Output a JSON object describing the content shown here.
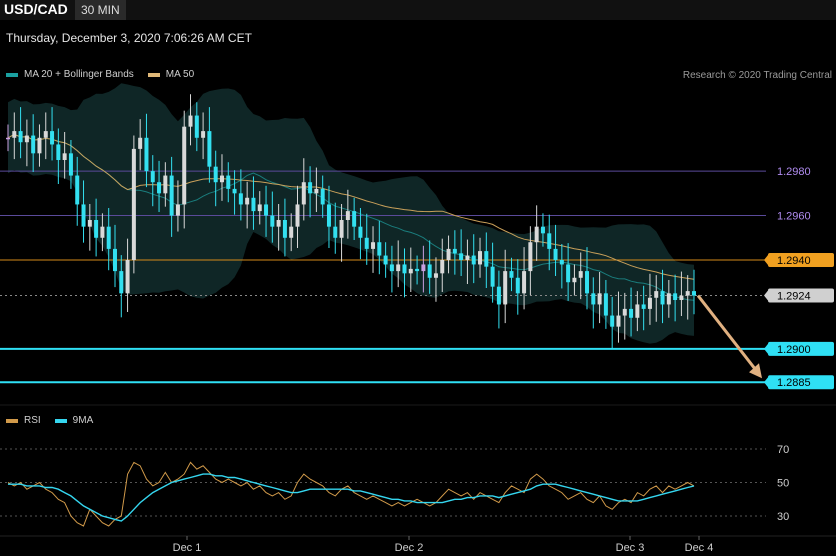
{
  "header": {
    "symbol": "USD/CAD",
    "timeframe": "30 MIN"
  },
  "datetime": "Thursday, December 3, 2020 7:06:26 AM CET",
  "legend_main": [
    {
      "label": "MA 20 + Bollinger Bands",
      "color": "#1aa0a0"
    },
    {
      "label": "MA 50",
      "color": "#e0b878"
    }
  ],
  "credit": "Research © 2020 Trading Central",
  "legend_rsi": [
    {
      "label": "RSI",
      "color": "#d19a4a"
    },
    {
      "label": "9MA",
      "color": "#35d6ef"
    }
  ],
  "colors": {
    "up": "#d9d9d9",
    "down": "#33e0f0",
    "doji_up": "#c9a0e0",
    "band": "#0f2626",
    "ma50": "#c9a05a",
    "ma20": "#1a7d7d"
  },
  "chart_data": [
    {
      "type": "candlestick",
      "ylim": [
        1.2868,
        1.3012
      ],
      "y_ticks": [
        "1.2980",
        "1.2960"
      ],
      "x_ticks": [
        "Dec 1",
        "Dec 2",
        "Dec 3",
        "Dec 4"
      ],
      "close_series": [
        1.2995,
        1.2998,
        1.2993,
        1.2996,
        1.2988,
        1.2995,
        1.2998,
        1.2992,
        1.2985,
        1.2988,
        1.2978,
        1.2965,
        1.2955,
        1.2958,
        1.295,
        1.2955,
        1.2945,
        1.2935,
        1.2925,
        1.294,
        1.299,
        1.2995,
        1.298,
        1.2975,
        1.297,
        1.2978,
        1.296,
        1.2965,
        1.3,
        1.3005,
        1.2995,
        1.2998,
        1.2982,
        1.2975,
        1.2978,
        1.2972,
        1.297,
        1.2965,
        1.2968,
        1.2962,
        1.2965,
        1.296,
        1.2955,
        1.2958,
        1.295,
        1.2955,
        1.2965,
        1.2975,
        1.297,
        1.2972,
        1.2965,
        1.2955,
        1.295,
        1.2958,
        1.2962,
        1.2955,
        1.295,
        1.2945,
        1.2948,
        1.2942,
        1.2938,
        1.2935,
        1.2938,
        1.2934,
        1.2936,
        1.2935,
        1.2938,
        1.2932,
        1.2934,
        1.294,
        1.2945,
        1.2943,
        1.294,
        1.2942,
        1.2938,
        1.2944,
        1.2937,
        1.2928,
        1.292,
        1.2935,
        1.2932,
        1.2925,
        1.2935,
        1.2948,
        1.2955,
        1.2952,
        1.2945,
        1.294,
        1.2938,
        1.293,
        1.2932,
        1.2935,
        1.2925,
        1.292,
        1.2925,
        1.2915,
        1.291,
        1.2915,
        1.2918,
        1.2914,
        1.292,
        1.2918,
        1.2923,
        1.2926,
        1.292,
        1.2925,
        1.2922,
        1.2924,
        1.2926,
        1.2924
      ],
      "price_lines": [
        {
          "label": "1.2980",
          "value": 1.298,
          "color": "#5a4a9a",
          "label_color": "#b08cf0"
        },
        {
          "label": "1.2960",
          "value": 1.296,
          "color": "#5a4a9a",
          "label_color": "#b08cf0"
        },
        {
          "label": "1.2940",
          "value": 1.294,
          "color": "#d58a1a",
          "label_bg": "#f0a020",
          "label_color": "#000"
        },
        {
          "label": "1.2924",
          "value": 1.2924,
          "color": "#888888",
          "dotted": true,
          "label_bg": "#d0d0d0",
          "label_color": "#000"
        },
        {
          "label": "1.2900",
          "value": 1.29,
          "color": "#2fe0f5",
          "label_bg": "#2fe0f5",
          "label_color": "#000"
        },
        {
          "label": "1.2885",
          "value": 1.2885,
          "color": "#2fe0f5",
          "label_bg": "#2fe0f5",
          "label_color": "#000"
        }
      ],
      "forecast_arrow": {
        "from_index": 109,
        "from": 1.2924,
        "to": 1.2885,
        "color": "#e0b080"
      }
    },
    {
      "type": "line",
      "ylim": [
        22,
        78
      ],
      "y_ticks": [
        70,
        50,
        30
      ],
      "series": [
        {
          "name": "RSI",
          "color": "#d19a4a",
          "values": [
            50,
            48,
            50,
            46,
            48,
            50,
            46,
            44,
            40,
            38,
            30,
            26,
            24,
            34,
            30,
            26,
            24,
            28,
            30,
            55,
            62,
            60,
            52,
            48,
            50,
            56,
            50,
            52,
            55,
            62,
            58,
            60,
            56,
            52,
            50,
            52,
            50,
            48,
            50,
            46,
            48,
            44,
            42,
            44,
            40,
            42,
            50,
            55,
            52,
            50,
            48,
            44,
            42,
            46,
            48,
            44,
            42,
            40,
            42,
            40,
            38,
            36,
            38,
            36,
            38,
            40,
            38,
            36,
            38,
            42,
            46,
            44,
            42,
            44,
            40,
            44,
            42,
            40,
            38,
            44,
            48,
            46,
            44,
            52,
            55,
            52,
            48,
            46,
            44,
            40,
            42,
            44,
            40,
            38,
            42,
            36,
            34,
            38,
            40,
            38,
            44,
            42,
            46,
            48,
            44,
            48,
            46,
            48,
            50,
            48
          ]
        },
        {
          "name": "9MA",
          "color": "#35d6ef",
          "values": [
            49,
            49,
            49,
            48,
            48,
            48,
            47,
            47,
            46,
            44,
            42,
            39,
            36,
            34,
            32,
            30,
            29,
            28,
            27,
            30,
            34,
            38,
            41,
            44,
            46,
            48,
            50,
            51,
            52,
            53,
            54,
            55,
            55,
            54,
            54,
            53,
            53,
            52,
            51,
            50,
            49,
            48,
            47,
            46,
            45,
            44,
            44,
            45,
            46,
            46,
            46,
            46,
            46,
            46,
            46,
            45,
            45,
            44,
            43,
            42,
            41,
            40,
            40,
            39,
            39,
            38,
            38,
            38,
            38,
            38,
            39,
            40,
            40,
            41,
            41,
            42,
            42,
            42,
            41,
            42,
            43,
            44,
            45,
            46,
            48,
            49,
            49,
            49,
            48,
            47,
            46,
            45,
            44,
            43,
            42,
            41,
            40,
            39,
            39,
            39,
            39,
            40,
            41,
            42,
            43,
            44,
            45,
            46,
            47,
            48
          ]
        }
      ],
      "legend_placement": "top-left"
    }
  ]
}
